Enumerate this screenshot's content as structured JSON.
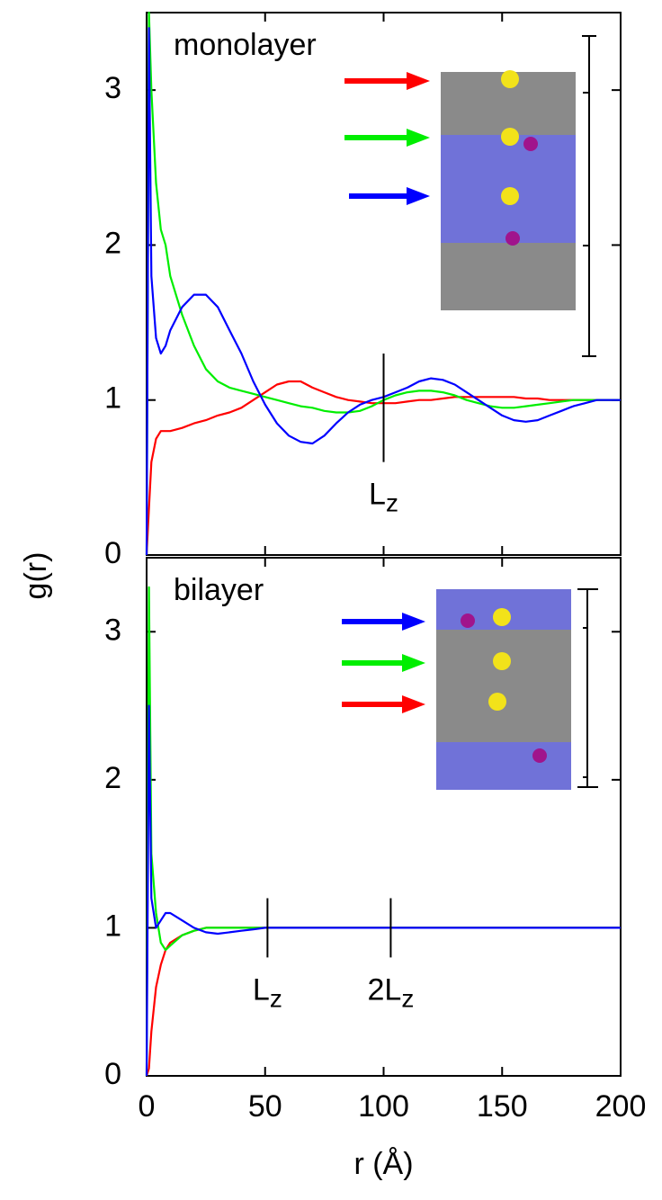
{
  "chart_data": [
    {
      "type": "line",
      "ylabel": "g(r)",
      "panel_label": "monolayer",
      "x": [
        0,
        1,
        2,
        4,
        6,
        8,
        10,
        15,
        20,
        25,
        30,
        35,
        40,
        45,
        50,
        55,
        60,
        65,
        70,
        75,
        80,
        85,
        90,
        95,
        100,
        105,
        110,
        115,
        120,
        125,
        130,
        135,
        140,
        145,
        150,
        155,
        160,
        165,
        170,
        175,
        180,
        185,
        190,
        195,
        200
      ],
      "series": [
        {
          "color": "#ff0000",
          "values": [
            0,
            0.3,
            0.6,
            0.75,
            0.8,
            0.8,
            0.8,
            0.82,
            0.85,
            0.87,
            0.9,
            0.92,
            0.95,
            1.0,
            1.05,
            1.1,
            1.12,
            1.12,
            1.08,
            1.05,
            1.02,
            1.0,
            0.99,
            0.98,
            0.98,
            0.98,
            0.99,
            1.0,
            1.0,
            1.01,
            1.02,
            1.02,
            1.02,
            1.02,
            1.02,
            1.02,
            1.01,
            1.01,
            1.0,
            1.0,
            1.0,
            1.0,
            1.0,
            1.0,
            1.0
          ]
        },
        {
          "color": "#00ee00",
          "values": [
            0,
            3.5,
            3.0,
            2.4,
            2.1,
            2.0,
            1.8,
            1.55,
            1.35,
            1.2,
            1.12,
            1.08,
            1.06,
            1.04,
            1.02,
            1.0,
            0.98,
            0.96,
            0.95,
            0.93,
            0.92,
            0.92,
            0.93,
            0.96,
            1.0,
            1.03,
            1.05,
            1.06,
            1.06,
            1.05,
            1.03,
            1.0,
            0.98,
            0.96,
            0.95,
            0.95,
            0.96,
            0.97,
            0.98,
            0.99,
            1.0,
            1.0,
            1.0,
            1.0,
            1.0
          ]
        },
        {
          "color": "#0000ff",
          "values": [
            0,
            3.4,
            1.8,
            1.4,
            1.3,
            1.35,
            1.45,
            1.6,
            1.68,
            1.68,
            1.6,
            1.45,
            1.3,
            1.12,
            0.97,
            0.85,
            0.77,
            0.73,
            0.72,
            0.77,
            0.85,
            0.92,
            0.97,
            1.0,
            1.02,
            1.05,
            1.08,
            1.12,
            1.14,
            1.13,
            1.1,
            1.05,
            1.0,
            0.95,
            0.9,
            0.87,
            0.86,
            0.87,
            0.9,
            0.93,
            0.96,
            0.98,
            1.0,
            1.0,
            1.0
          ]
        }
      ],
      "xlim": [
        0,
        200
      ],
      "ylim": [
        0,
        3.5
      ],
      "xticks": [
        0,
        50,
        100,
        150,
        200
      ],
      "yticks": [
        0,
        1,
        2,
        3
      ],
      "annotations": [
        {
          "label": "L",
          "subscript": "z",
          "x": 100,
          "ylim": [
            0.6,
            1.3
          ]
        }
      ]
    },
    {
      "type": "line",
      "xlabel": "r (Å)",
      "panel_label": "bilayer",
      "x": [
        0,
        1,
        2,
        4,
        6,
        8,
        10,
        15,
        20,
        25,
        30,
        35,
        40,
        45,
        50,
        55,
        60,
        65,
        70,
        75,
        80,
        85,
        90,
        95,
        100,
        105,
        110,
        115,
        120,
        125,
        130,
        135,
        140,
        145,
        150,
        155,
        160,
        165,
        170,
        175,
        180,
        185,
        190,
        195,
        200
      ],
      "series": [
        {
          "color": "#ff0000",
          "values": [
            0,
            0.05,
            0.3,
            0.6,
            0.75,
            0.85,
            0.9,
            0.95,
            0.98,
            1,
            1,
            1,
            1,
            1,
            1,
            1,
            1,
            1,
            1,
            1,
            1,
            1,
            1,
            1,
            1,
            1,
            1,
            1,
            1,
            1,
            1,
            1,
            1,
            1,
            1,
            1,
            1,
            1,
            1,
            1,
            1,
            1,
            1,
            1,
            1
          ]
        },
        {
          "color": "#00ee00",
          "values": [
            0,
            3.3,
            1.5,
            1.1,
            0.9,
            0.85,
            0.88,
            0.95,
            0.98,
            1,
            1,
            1,
            1,
            1,
            1,
            1,
            1,
            1,
            1,
            1,
            1,
            1,
            1,
            1,
            1,
            1,
            1,
            1,
            1,
            1,
            1,
            1,
            1,
            1,
            1,
            1,
            1,
            1,
            1,
            1,
            1,
            1,
            1,
            1,
            1
          ]
        },
        {
          "color": "#0000ff",
          "values": [
            0,
            2.5,
            1.2,
            1.0,
            1.05,
            1.1,
            1.1,
            1.05,
            1.0,
            0.97,
            0.96,
            0.97,
            0.98,
            0.99,
            1,
            1,
            1,
            1,
            1,
            1,
            1,
            1,
            1,
            1,
            1,
            1,
            1,
            1,
            1,
            1,
            1,
            1,
            1,
            1,
            1,
            1,
            1,
            1,
            1,
            1,
            1,
            1,
            1,
            1,
            1
          ]
        }
      ],
      "xlim": [
        0,
        200
      ],
      "ylim": [
        0,
        3.5
      ],
      "xticks": [
        0,
        50,
        100,
        150,
        200
      ],
      "yticks": [
        0,
        1,
        2,
        3
      ],
      "annotations": [
        {
          "label": "L",
          "subscript": "z",
          "x": 51,
          "ylim": [
            0.8,
            1.2
          ]
        },
        {
          "label": "2L",
          "subscript": "z",
          "x": 103,
          "ylim": [
            0.8,
            1.2
          ]
        }
      ]
    }
  ]
}
